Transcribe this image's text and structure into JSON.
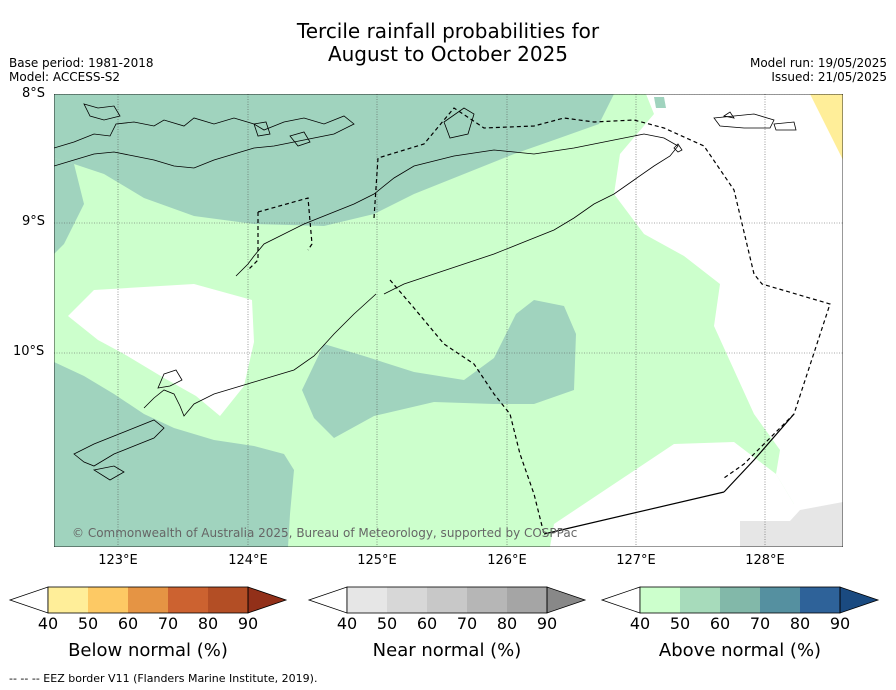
{
  "title": {
    "line1": "Tercile rainfall probabilities for",
    "line2": "August to October 2025"
  },
  "meta": {
    "base_period": "Base period: 1981-2018",
    "model": "Model: ACCESS-S2",
    "model_run": "Model run: 19/05/2025",
    "issued": "Issued: 21/05/2025"
  },
  "axes": {
    "lat_labels": [
      "8°S",
      "9°S",
      "10°S"
    ],
    "lon_labels": [
      "123°E",
      "124°E",
      "125°E",
      "126°E",
      "127°E",
      "128°E"
    ]
  },
  "copyright": "© Commonwealth of Australia 2025, Bureau of Meteorology, supported by COSPPac",
  "colorbars": [
    {
      "label": "Below normal (%)",
      "ticks": [
        "40",
        "50",
        "60",
        "70",
        "80",
        "90"
      ],
      "colors": [
        "#ffffff",
        "#ffee99",
        "#fdc964",
        "#e59444",
        "#cc6230",
        "#b34e25",
        "#923019"
      ]
    },
    {
      "label": "Near normal (%)",
      "ticks": [
        "40",
        "50",
        "60",
        "70",
        "80",
        "90"
      ],
      "colors": [
        "#ffffff",
        "#e6e6e6",
        "#d7d7d7",
        "#c8c8c8",
        "#b6b6b6",
        "#a5a5a5",
        "#888888"
      ]
    },
    {
      "label": "Above normal (%)",
      "ticks": [
        "40",
        "50",
        "60",
        "70",
        "80",
        "90"
      ],
      "colors": [
        "#ffffff",
        "#ccffcc",
        "#a7dbbb",
        "#82b8a9",
        "#5590a0",
        "#2e6299",
        "#1a4a80"
      ]
    }
  ],
  "legend_colors": {
    "above_50": "#ccffcc",
    "above_60": "#a0d3be",
    "near_50": "#e6e6e6",
    "below_50": "#ffee99"
  },
  "footnote": "--  --  -- EEZ border V11 (Flanders Marine Institute, 2019)."
}
